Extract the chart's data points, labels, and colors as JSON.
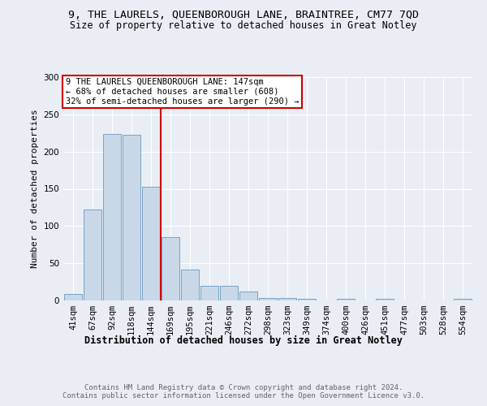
{
  "title_line1": "9, THE LAURELS, QUEENBOROUGH LANE, BRAINTREE, CM77 7QD",
  "title_line2": "Size of property relative to detached houses in Great Notley",
  "xlabel": "Distribution of detached houses by size in Great Notley",
  "ylabel": "Number of detached properties",
  "categories": [
    "41sqm",
    "67sqm",
    "92sqm",
    "118sqm",
    "144sqm",
    "169sqm",
    "195sqm",
    "221sqm",
    "246sqm",
    "272sqm",
    "298sqm",
    "323sqm",
    "349sqm",
    "374sqm",
    "400sqm",
    "426sqm",
    "451sqm",
    "477sqm",
    "503sqm",
    "528sqm",
    "554sqm"
  ],
  "values": [
    9,
    122,
    224,
    222,
    153,
    85,
    41,
    20,
    20,
    12,
    3,
    3,
    2,
    0,
    2,
    0,
    2,
    0,
    0,
    0,
    2
  ],
  "bar_color": "#c8d8e8",
  "bar_edge_color": "#6a9abf",
  "property_line_x": 4.5,
  "annotation_text": "9 THE LAURELS QUEENBOROUGH LANE: 147sqm\n← 68% of detached houses are smaller (608)\n32% of semi-detached houses are larger (290) →",
  "annotation_box_color": "#ffffff",
  "annotation_border_color": "#cc0000",
  "vline_color": "#cc0000",
  "background_color": "#e8eef4",
  "plot_background": "#e8eef4",
  "ylim": [
    0,
    300
  ],
  "yticks": [
    0,
    50,
    100,
    150,
    200,
    250,
    300
  ],
  "footer_text": "Contains HM Land Registry data © Crown copyright and database right 2024.\nContains public sector information licensed under the Open Government Licence v3.0.",
  "title_fontsize": 9.5,
  "subtitle_fontsize": 8.5,
  "ylabel_fontsize": 8,
  "xlabel_fontsize": 8.5,
  "tick_fontsize": 7.5,
  "annotation_fontsize": 7.5,
  "footer_fontsize": 6.5
}
